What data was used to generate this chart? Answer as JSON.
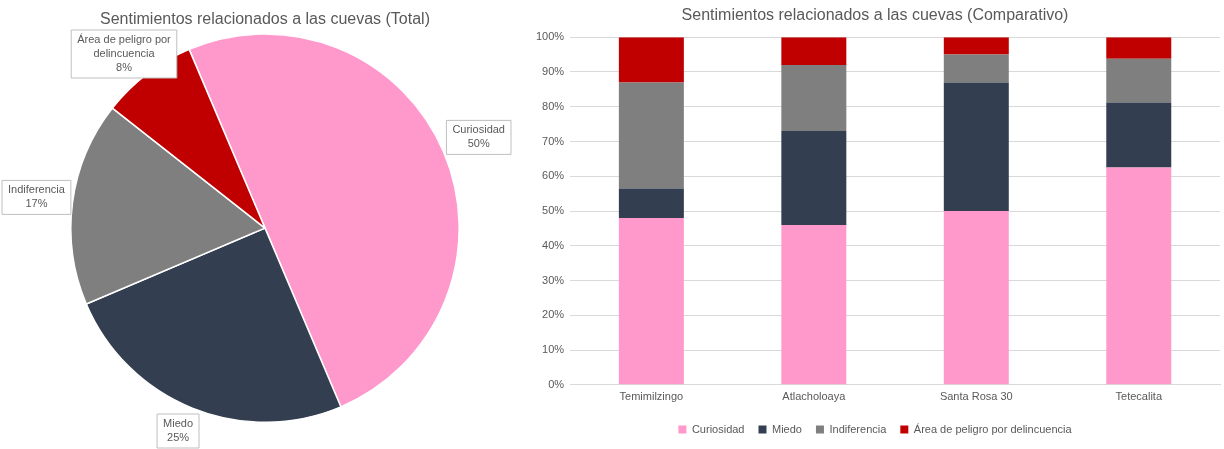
{
  "chart_data": [
    {
      "type": "pie",
      "title": "Sentimientos relacionados a las cuevas (Total)",
      "categories": [
        "Curiosidad",
        "Miedo",
        "Indiferencia",
        "Área de peligro por delincuencia"
      ],
      "values": [
        50,
        25,
        17,
        8
      ],
      "colors": [
        "#ff99cc",
        "#333f50",
        "#7f7f7f",
        "#c00000"
      ],
      "value_labels": [
        "50%",
        "25%",
        "17%",
        "8%"
      ],
      "legend": false
    },
    {
      "type": "bar",
      "stacked": true,
      "title": "Sentimientos relacionados a las cuevas (Comparativo)",
      "categories": [
        "Temimilzingo",
        "Atlacholoaya",
        "Santa Rosa 30",
        "Tetecalita"
      ],
      "series": [
        {
          "name": "Curiosidad",
          "color": "#ff99cc",
          "values": [
            48,
            46,
            50,
            62.5
          ]
        },
        {
          "name": "Miedo",
          "color": "#333f50",
          "values": [
            8.5,
            27,
            37,
            18.7
          ]
        },
        {
          "name": "Indiferencia",
          "color": "#7f7f7f",
          "values": [
            30.5,
            19,
            8,
            12.6
          ]
        },
        {
          "name": "Área de peligro por delincuencia",
          "color": "#c00000",
          "values": [
            13,
            8,
            5,
            6.2
          ]
        }
      ],
      "ylim": [
        0,
        100
      ],
      "yticks": [
        {
          "value": 0,
          "label": "0%"
        },
        {
          "value": 10,
          "label": "10%"
        },
        {
          "value": 20,
          "label": "20%"
        },
        {
          "value": 30,
          "label": "30%"
        },
        {
          "value": 40,
          "label": "40%"
        },
        {
          "value": 50,
          "label": "50%"
        },
        {
          "value": 60,
          "label": "60%"
        },
        {
          "value": 70,
          "label": "70%"
        },
        {
          "value": 80,
          "label": "80%"
        },
        {
          "value": 90,
          "label": "90%"
        },
        {
          "value": 100,
          "label": "100%"
        }
      ],
      "grid": "y",
      "legend": "bottom"
    }
  ]
}
